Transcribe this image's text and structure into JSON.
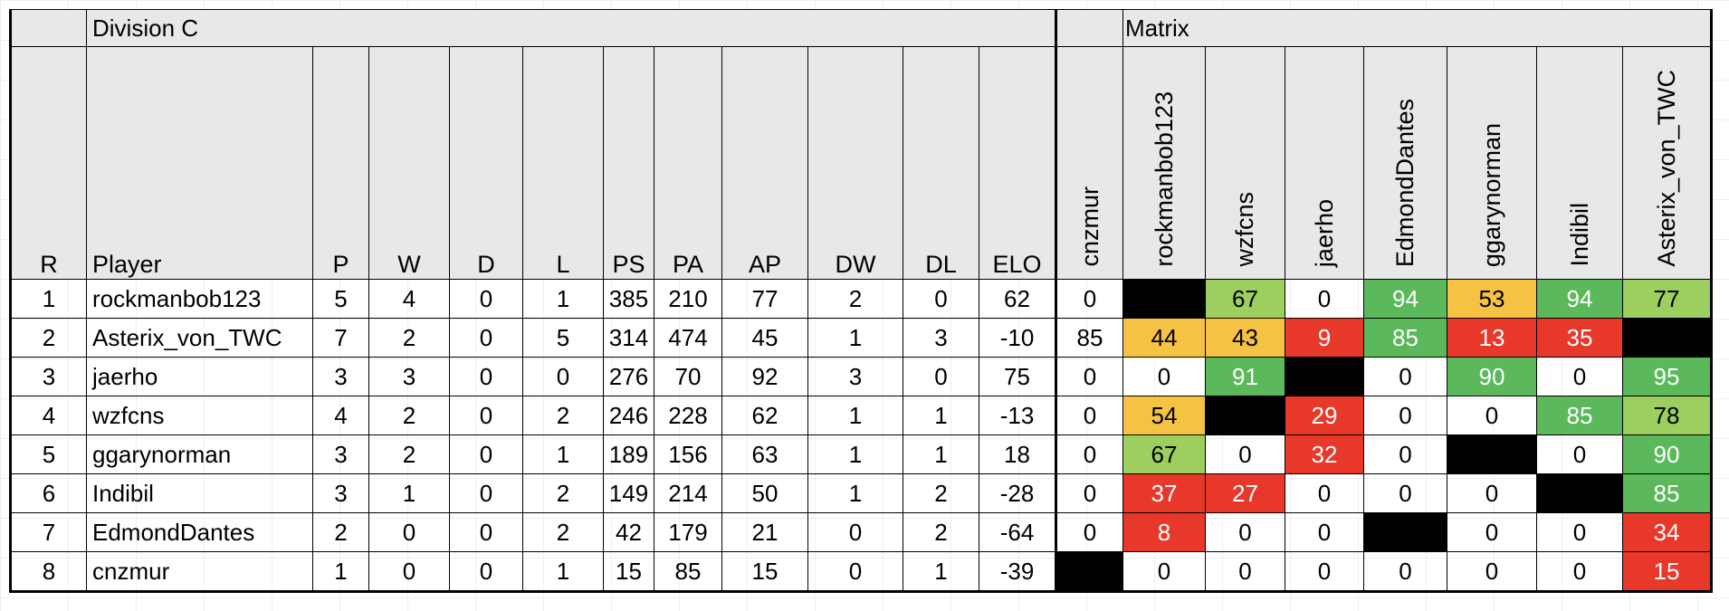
{
  "division_title": "Division C",
  "matrix_title": "Matrix",
  "headers": [
    "R",
    "Player",
    "P",
    "W",
    "D",
    "L",
    "PS",
    "PA",
    "AP",
    "DW",
    "DL",
    "ELO"
  ],
  "matrix_headers": [
    "cnzmur",
    "rockmanbob123",
    "wzfcns",
    "jaerho",
    "EdmondDantes",
    "ggarynorman",
    "Indibil",
    "Asterix_von_TWC"
  ],
  "colors": {
    "header_bg": "#e8e8e8",
    "black": "#000000",
    "light_green": "#9ccf5e",
    "green": "#5bb85b",
    "yellow": "#f6c244",
    "red": "#e8382a"
  },
  "rows": [
    {
      "stats": [
        "1",
        "rockmanbob123",
        "5",
        "4",
        "0",
        "1",
        "385",
        "210",
        "77",
        "2",
        "0",
        "62"
      ],
      "matrix": [
        {
          "v": "0",
          "c": ""
        },
        {
          "v": "",
          "c": "black"
        },
        {
          "v": "67",
          "c": "lgreen"
        },
        {
          "v": "0",
          "c": ""
        },
        {
          "v": "94",
          "c": "green"
        },
        {
          "v": "53",
          "c": "yellow"
        },
        {
          "v": "94",
          "c": "green"
        },
        {
          "v": "77",
          "c": "lgreen"
        }
      ]
    },
    {
      "stats": [
        "2",
        "Asterix_von_TWC",
        "7",
        "2",
        "0",
        "5",
        "314",
        "474",
        "45",
        "1",
        "3",
        "-10"
      ],
      "matrix": [
        {
          "v": "85",
          "c": ""
        },
        {
          "v": "44",
          "c": "yellow"
        },
        {
          "v": "43",
          "c": "yellow"
        },
        {
          "v": "9",
          "c": "red"
        },
        {
          "v": "85",
          "c": "green"
        },
        {
          "v": "13",
          "c": "red"
        },
        {
          "v": "35",
          "c": "red"
        },
        {
          "v": "",
          "c": "black"
        }
      ]
    },
    {
      "stats": [
        "3",
        "jaerho",
        "3",
        "3",
        "0",
        "0",
        "276",
        "70",
        "92",
        "3",
        "0",
        "75"
      ],
      "matrix": [
        {
          "v": "0",
          "c": ""
        },
        {
          "v": "0",
          "c": ""
        },
        {
          "v": "91",
          "c": "green"
        },
        {
          "v": "",
          "c": "black"
        },
        {
          "v": "0",
          "c": ""
        },
        {
          "v": "90",
          "c": "green"
        },
        {
          "v": "0",
          "c": ""
        },
        {
          "v": "95",
          "c": "green"
        }
      ]
    },
    {
      "stats": [
        "4",
        "wzfcns",
        "4",
        "2",
        "0",
        "2",
        "246",
        "228",
        "62",
        "1",
        "1",
        "-13"
      ],
      "matrix": [
        {
          "v": "0",
          "c": ""
        },
        {
          "v": "54",
          "c": "yellow"
        },
        {
          "v": "",
          "c": "black"
        },
        {
          "v": "29",
          "c": "red"
        },
        {
          "v": "0",
          "c": ""
        },
        {
          "v": "0",
          "c": ""
        },
        {
          "v": "85",
          "c": "green"
        },
        {
          "v": "78",
          "c": "lgreen"
        }
      ]
    },
    {
      "stats": [
        "5",
        "ggarynorman",
        "3",
        "2",
        "0",
        "1",
        "189",
        "156",
        "63",
        "1",
        "1",
        "18"
      ],
      "matrix": [
        {
          "v": "0",
          "c": ""
        },
        {
          "v": "67",
          "c": "lgreen"
        },
        {
          "v": "0",
          "c": ""
        },
        {
          "v": "32",
          "c": "red"
        },
        {
          "v": "0",
          "c": ""
        },
        {
          "v": "",
          "c": "black"
        },
        {
          "v": "0",
          "c": ""
        },
        {
          "v": "90",
          "c": "green"
        }
      ]
    },
    {
      "stats": [
        "6",
        "Indibil",
        "3",
        "1",
        "0",
        "2",
        "149",
        "214",
        "50",
        "1",
        "2",
        "-28"
      ],
      "matrix": [
        {
          "v": "0",
          "c": ""
        },
        {
          "v": "37",
          "c": "red"
        },
        {
          "v": "27",
          "c": "red"
        },
        {
          "v": "0",
          "c": ""
        },
        {
          "v": "0",
          "c": ""
        },
        {
          "v": "0",
          "c": ""
        },
        {
          "v": "",
          "c": "black"
        },
        {
          "v": "85",
          "c": "green"
        }
      ]
    },
    {
      "stats": [
        "7",
        "EdmondDantes",
        "2",
        "0",
        "0",
        "2",
        "42",
        "179",
        "21",
        "0",
        "2",
        "-64"
      ],
      "matrix": [
        {
          "v": "0",
          "c": ""
        },
        {
          "v": "8",
          "c": "red"
        },
        {
          "v": "0",
          "c": ""
        },
        {
          "v": "0",
          "c": ""
        },
        {
          "v": "",
          "c": "black"
        },
        {
          "v": "0",
          "c": ""
        },
        {
          "v": "0",
          "c": ""
        },
        {
          "v": "34",
          "c": "red"
        }
      ]
    },
    {
      "stats": [
        "8",
        "cnzmur",
        "1",
        "0",
        "0",
        "1",
        "15",
        "85",
        "15",
        "0",
        "1",
        "-39"
      ],
      "matrix": [
        {
          "v": "",
          "c": "black"
        },
        {
          "v": "0",
          "c": ""
        },
        {
          "v": "0",
          "c": ""
        },
        {
          "v": "0",
          "c": ""
        },
        {
          "v": "0",
          "c": ""
        },
        {
          "v": "0",
          "c": ""
        },
        {
          "v": "0",
          "c": ""
        },
        {
          "v": "15",
          "c": "red"
        }
      ]
    }
  ]
}
